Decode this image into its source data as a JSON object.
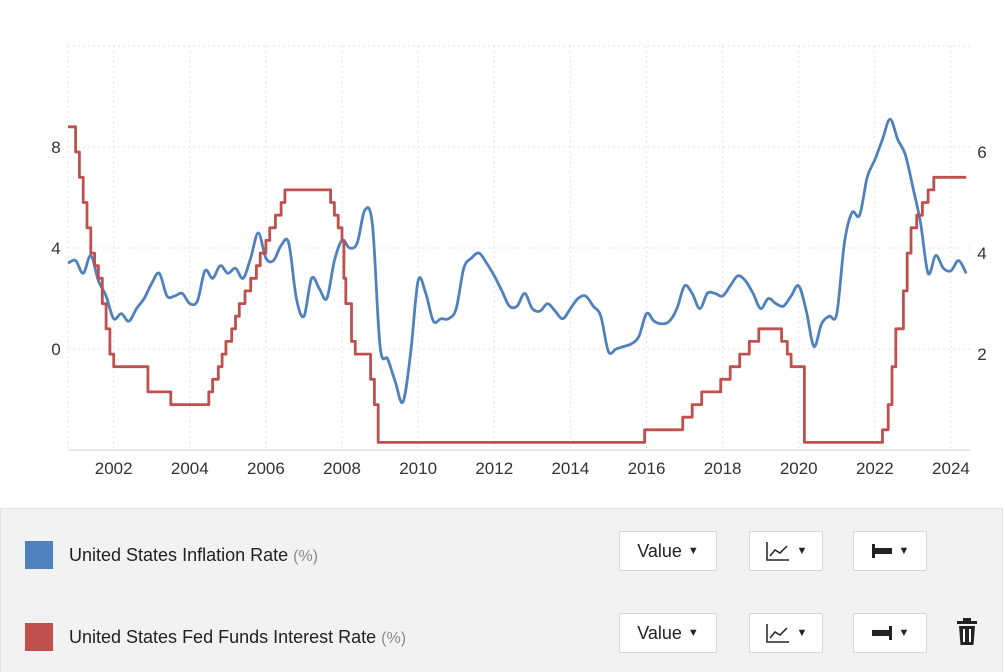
{
  "chart_data": {
    "type": "line",
    "x_ticks": [
      "2002",
      "2004",
      "2006",
      "2008",
      "2010",
      "2012",
      "2014",
      "2016",
      "2018",
      "2020",
      "2022",
      "2024"
    ],
    "y_left_ticks": [
      "0",
      "4",
      "8"
    ],
    "y_right_ticks": [
      "2",
      "4",
      "6"
    ],
    "y_left_range": [
      -4,
      12
    ],
    "y_right_range": [
      0.1,
      8.1
    ],
    "series": [
      {
        "name": "United States Inflation Rate",
        "color": "#4f81bd",
        "axis": "left",
        "points": [
          [
            2000.8,
            3.4
          ],
          [
            2001.0,
            3.5
          ],
          [
            2001.2,
            3.0
          ],
          [
            2001.4,
            3.7
          ],
          [
            2001.6,
            2.7
          ],
          [
            2001.8,
            2.1
          ],
          [
            2002.0,
            1.2
          ],
          [
            2002.2,
            1.4
          ],
          [
            2002.4,
            1.1
          ],
          [
            2002.6,
            1.6
          ],
          [
            2002.8,
            2.0
          ],
          [
            2003.0,
            2.6
          ],
          [
            2003.2,
            3.0
          ],
          [
            2003.4,
            2.1
          ],
          [
            2003.6,
            2.1
          ],
          [
            2003.8,
            2.2
          ],
          [
            2004.0,
            1.8
          ],
          [
            2004.2,
            1.9
          ],
          [
            2004.4,
            3.1
          ],
          [
            2004.6,
            2.8
          ],
          [
            2004.8,
            3.3
          ],
          [
            2005.0,
            3.0
          ],
          [
            2005.2,
            3.2
          ],
          [
            2005.4,
            2.8
          ],
          [
            2005.6,
            3.6
          ],
          [
            2005.8,
            4.6
          ],
          [
            2006.0,
            3.6
          ],
          [
            2006.2,
            3.5
          ],
          [
            2006.4,
            4.1
          ],
          [
            2006.6,
            4.2
          ],
          [
            2006.8,
            2.0
          ],
          [
            2007.0,
            1.3
          ],
          [
            2007.2,
            2.8
          ],
          [
            2007.4,
            2.4
          ],
          [
            2007.6,
            2.0
          ],
          [
            2007.8,
            3.5
          ],
          [
            2008.0,
            4.3
          ],
          [
            2008.2,
            4.0
          ],
          [
            2008.4,
            4.2
          ],
          [
            2008.6,
            5.5
          ],
          [
            2008.8,
            4.9
          ],
          [
            2009.0,
            0.1
          ],
          [
            2009.2,
            -0.4
          ],
          [
            2009.4,
            -1.3
          ],
          [
            2009.6,
            -2.1
          ],
          [
            2009.8,
            -0.2
          ],
          [
            2010.0,
            2.7
          ],
          [
            2010.2,
            2.2
          ],
          [
            2010.4,
            1.1
          ],
          [
            2010.6,
            1.2
          ],
          [
            2010.8,
            1.2
          ],
          [
            2011.0,
            1.6
          ],
          [
            2011.2,
            3.2
          ],
          [
            2011.4,
            3.6
          ],
          [
            2011.6,
            3.8
          ],
          [
            2011.8,
            3.4
          ],
          [
            2012.0,
            2.9
          ],
          [
            2012.2,
            2.3
          ],
          [
            2012.4,
            1.7
          ],
          [
            2012.6,
            1.7
          ],
          [
            2012.8,
            2.2
          ],
          [
            2013.0,
            1.6
          ],
          [
            2013.2,
            1.5
          ],
          [
            2013.4,
            1.8
          ],
          [
            2013.6,
            1.5
          ],
          [
            2013.8,
            1.2
          ],
          [
            2014.0,
            1.6
          ],
          [
            2014.2,
            2.0
          ],
          [
            2014.4,
            2.1
          ],
          [
            2014.6,
            1.7
          ],
          [
            2014.8,
            1.3
          ],
          [
            2015.0,
            -0.1
          ],
          [
            2015.2,
            0.0
          ],
          [
            2015.4,
            0.1
          ],
          [
            2015.6,
            0.2
          ],
          [
            2015.8,
            0.5
          ],
          [
            2016.0,
            1.4
          ],
          [
            2016.2,
            1.1
          ],
          [
            2016.4,
            1.0
          ],
          [
            2016.6,
            1.1
          ],
          [
            2016.8,
            1.6
          ],
          [
            2017.0,
            2.5
          ],
          [
            2017.2,
            2.2
          ],
          [
            2017.4,
            1.6
          ],
          [
            2017.6,
            2.2
          ],
          [
            2017.8,
            2.2
          ],
          [
            2018.0,
            2.1
          ],
          [
            2018.2,
            2.5
          ],
          [
            2018.4,
            2.9
          ],
          [
            2018.6,
            2.7
          ],
          [
            2018.8,
            2.2
          ],
          [
            2019.0,
            1.6
          ],
          [
            2019.2,
            2.0
          ],
          [
            2019.4,
            1.8
          ],
          [
            2019.6,
            1.7
          ],
          [
            2019.8,
            2.1
          ],
          [
            2020.0,
            2.5
          ],
          [
            2020.2,
            1.5
          ],
          [
            2020.4,
            0.1
          ],
          [
            2020.6,
            1.0
          ],
          [
            2020.8,
            1.3
          ],
          [
            2021.0,
            1.4
          ],
          [
            2021.2,
            4.2
          ],
          [
            2021.4,
            5.4
          ],
          [
            2021.6,
            5.3
          ],
          [
            2021.8,
            6.8
          ],
          [
            2022.0,
            7.5
          ],
          [
            2022.2,
            8.3
          ],
          [
            2022.4,
            9.1
          ],
          [
            2022.6,
            8.3
          ],
          [
            2022.8,
            7.7
          ],
          [
            2023.0,
            6.4
          ],
          [
            2023.2,
            5.0
          ],
          [
            2023.4,
            3.0
          ],
          [
            2023.6,
            3.7
          ],
          [
            2023.8,
            3.2
          ],
          [
            2024.0,
            3.1
          ],
          [
            2024.2,
            3.5
          ],
          [
            2024.4,
            3.0
          ]
        ]
      },
      {
        "name": "United States Fed Funds Interest Rate",
        "color": "#c0504d",
        "axis": "right",
        "points": [
          [
            2000.8,
            6.5
          ],
          [
            2001.0,
            6.0
          ],
          [
            2001.1,
            5.5
          ],
          [
            2001.2,
            5.0
          ],
          [
            2001.3,
            4.5
          ],
          [
            2001.4,
            4.0
          ],
          [
            2001.5,
            3.75
          ],
          [
            2001.6,
            3.5
          ],
          [
            2001.7,
            3.0
          ],
          [
            2001.8,
            2.5
          ],
          [
            2001.9,
            2.0
          ],
          [
            2002.0,
            1.75
          ],
          [
            2002.9,
            1.25
          ],
          [
            2003.5,
            1.0
          ],
          [
            2004.5,
            1.25
          ],
          [
            2004.6,
            1.5
          ],
          [
            2004.75,
            1.75
          ],
          [
            2004.85,
            2.0
          ],
          [
            2004.95,
            2.25
          ],
          [
            2005.1,
            2.5
          ],
          [
            2005.2,
            2.75
          ],
          [
            2005.3,
            3.0
          ],
          [
            2005.45,
            3.25
          ],
          [
            2005.6,
            3.5
          ],
          [
            2005.75,
            3.75
          ],
          [
            2005.85,
            4.0
          ],
          [
            2006.0,
            4.25
          ],
          [
            2006.1,
            4.5
          ],
          [
            2006.25,
            4.75
          ],
          [
            2006.4,
            5.0
          ],
          [
            2006.5,
            5.25
          ],
          [
            2007.7,
            5.0
          ],
          [
            2007.8,
            4.75
          ],
          [
            2007.9,
            4.5
          ],
          [
            2008.0,
            4.25
          ],
          [
            2008.05,
            3.5
          ],
          [
            2008.1,
            3.0
          ],
          [
            2008.25,
            2.25
          ],
          [
            2008.35,
            2.0
          ],
          [
            2008.75,
            1.5
          ],
          [
            2008.85,
            1.0
          ],
          [
            2008.95,
            0.25
          ],
          [
            2015.95,
            0.5
          ],
          [
            2016.95,
            0.75
          ],
          [
            2017.2,
            1.0
          ],
          [
            2017.45,
            1.25
          ],
          [
            2017.95,
            1.5
          ],
          [
            2018.2,
            1.75
          ],
          [
            2018.45,
            2.0
          ],
          [
            2018.7,
            2.25
          ],
          [
            2018.95,
            2.5
          ],
          [
            2019.55,
            2.25
          ],
          [
            2019.7,
            2.0
          ],
          [
            2019.8,
            1.75
          ],
          [
            2020.15,
            0.25
          ],
          [
            2022.2,
            0.5
          ],
          [
            2022.35,
            1.0
          ],
          [
            2022.45,
            1.75
          ],
          [
            2022.55,
            2.5
          ],
          [
            2022.75,
            3.25
          ],
          [
            2022.85,
            4.0
          ],
          [
            2022.95,
            4.5
          ],
          [
            2023.1,
            4.75
          ],
          [
            2023.25,
            5.0
          ],
          [
            2023.4,
            5.25
          ],
          [
            2023.55,
            5.5
          ],
          [
            2024.4,
            5.5
          ]
        ]
      }
    ],
    "grid": true
  },
  "legend": {
    "rows": [
      {
        "label": "United States Inflation Rate",
        "unit": "(%)",
        "color": "#4f81bd",
        "value_label": "Value",
        "chart_icon": "line-chart-icon",
        "axis_icon": "left-axis-icon"
      },
      {
        "label": "United States Fed Funds Interest Rate",
        "unit": "(%)",
        "color": "#c0504d",
        "value_label": "Value",
        "chart_icon": "line-chart-icon",
        "axis_icon": "right-axis-icon"
      }
    ],
    "delete_icon": "trash-icon"
  }
}
